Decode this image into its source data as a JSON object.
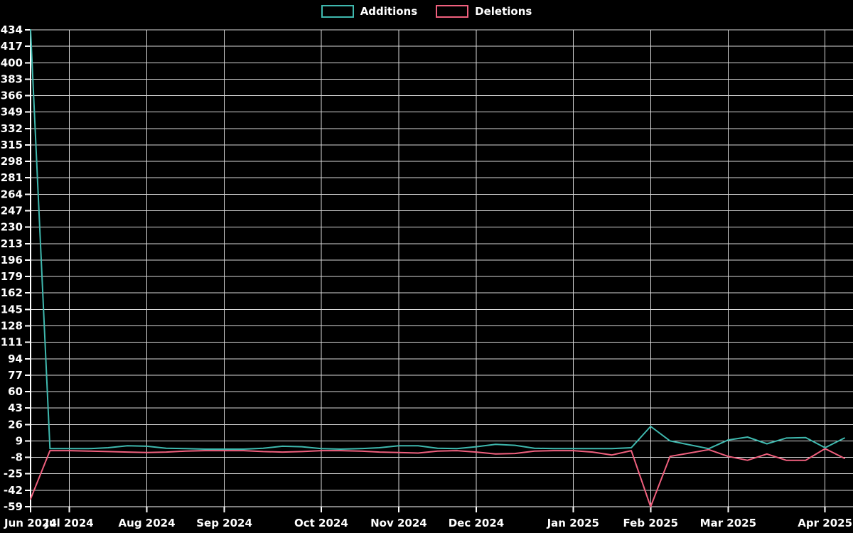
{
  "legend": {
    "additions_label": "Additions",
    "deletions_label": "Deletions"
  },
  "chart_data": {
    "type": "line",
    "title": "",
    "xlabel": "",
    "ylabel": "",
    "legend_position": "top-center",
    "grid": true,
    "background_color": "#000000",
    "grid_color": "#d9d9d9",
    "axis_color": "#ffffff",
    "text_color": "#ffffff",
    "ylim": [
      -59,
      434
    ],
    "yticks": [
      434,
      417,
      400,
      383,
      366,
      349,
      332,
      315,
      298,
      281,
      264,
      247,
      230,
      213,
      196,
      179,
      162,
      145,
      128,
      111,
      94,
      77,
      60,
      43,
      26,
      9,
      -8,
      -25,
      -42,
      -59
    ],
    "x_labels": [
      {
        "index": 0,
        "label": "Jun 2024"
      },
      {
        "index": 2,
        "label": "Jul 2024"
      },
      {
        "index": 6,
        "label": "Aug 2024"
      },
      {
        "index": 10,
        "label": "Sep 2024"
      },
      {
        "index": 15,
        "label": "Oct 2024"
      },
      {
        "index": 19,
        "label": "Nov 2024"
      },
      {
        "index": 23,
        "label": "Dec 2024"
      },
      {
        "index": 28,
        "label": "Jan 2025"
      },
      {
        "index": 32,
        "label": "Feb 2025"
      },
      {
        "index": 36,
        "label": "Mar 2025"
      },
      {
        "index": 41,
        "label": "Apr 2025"
      }
    ],
    "n_points": 43,
    "x_unit": "week",
    "series": [
      {
        "name": "Deletions",
        "color": "#f0607e",
        "values": [
          -51,
          -1,
          -1,
          -1.5,
          -2,
          -2.5,
          -3,
          -2.5,
          -1.5,
          -1,
          -1,
          -1,
          -2,
          -2.5,
          -2,
          -1,
          -1,
          -1.5,
          -2.5,
          -3,
          -3.5,
          -1.5,
          -1,
          -2.5,
          -4.5,
          -4,
          -1.5,
          -1,
          -1,
          -2.5,
          -5.5,
          -1,
          -59,
          -7,
          -3.5,
          0,
          -7,
          -11,
          -4.5,
          -11,
          -11,
          1,
          -9
        ]
      },
      {
        "name": "Additions",
        "color": "#3fb8ae",
        "values": [
          434,
          1,
          1,
          1,
          2,
          4,
          3.5,
          1.5,
          1,
          0.5,
          0.5,
          0.5,
          1.5,
          3.5,
          3,
          1,
          0.5,
          1,
          2,
          4,
          4,
          1.5,
          1,
          3,
          5.5,
          4.5,
          1.5,
          1,
          1,
          1,
          1,
          2,
          24,
          9,
          5,
          1,
          10,
          13,
          6,
          12,
          12.5,
          2,
          12
        ]
      }
    ]
  }
}
